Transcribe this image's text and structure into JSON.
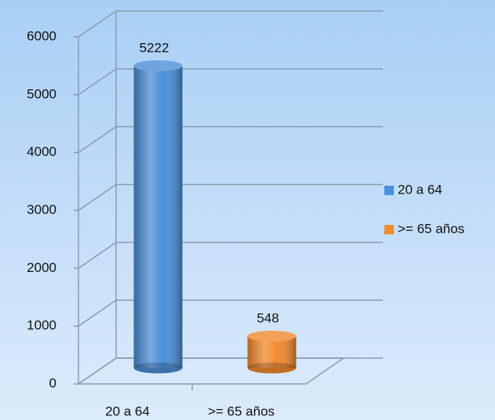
{
  "chart_data": {
    "type": "bar3d",
    "categories": [
      "20 a 64",
      ">= 65 años"
    ],
    "values": [
      5222,
      548
    ],
    "colors": [
      "#4a8fd8",
      "#f28a2e"
    ],
    "ylim": [
      0,
      6000
    ],
    "yticks": [
      0,
      1000,
      2000,
      3000,
      4000,
      5000,
      6000
    ],
    "grid": true,
    "legend": "right"
  }
}
